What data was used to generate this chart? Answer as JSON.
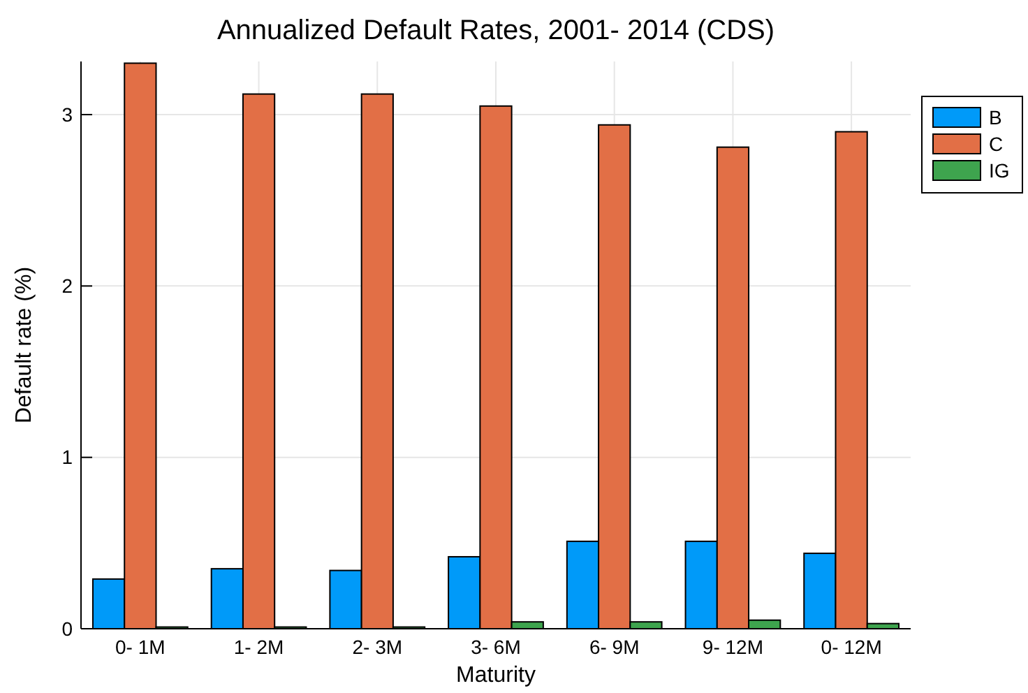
{
  "chart_data": {
    "type": "bar",
    "title": "Annualized Default Rates, 2001- 2014 (CDS)",
    "xlabel": "Maturity",
    "ylabel": "Default rate (%)",
    "categories": [
      "0- 1M",
      "1- 2M",
      "2- 3M",
      "3- 6M",
      "6- 9M",
      "9- 12M",
      "0- 12M"
    ],
    "series": [
      {
        "name": "B",
        "color": "#009af9",
        "values": [
          0.29,
          0.35,
          0.34,
          0.42,
          0.51,
          0.51,
          0.44
        ]
      },
      {
        "name": "C",
        "color": "#e26f46",
        "values": [
          3.3,
          3.12,
          3.12,
          3.05,
          2.94,
          2.81,
          2.9
        ]
      },
      {
        "name": "IG",
        "color": "#3ea44e",
        "values": [
          0.01,
          0.01,
          0.01,
          0.04,
          0.04,
          0.05,
          0.03
        ]
      }
    ],
    "ylim": [
      0,
      3.31
    ],
    "yticks": [
      0,
      1,
      2,
      3
    ],
    "grid": true,
    "legend": "right"
  }
}
